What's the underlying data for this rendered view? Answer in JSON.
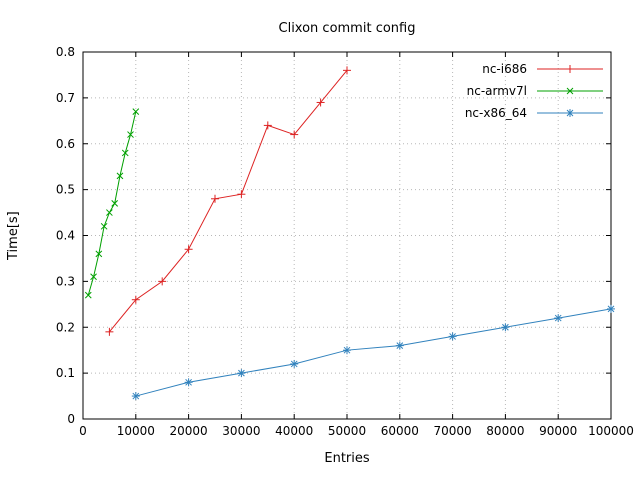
{
  "chart_data": {
    "type": "line",
    "title": "Clixon commit config",
    "xlabel": "Entries",
    "ylabel": "Time[s]",
    "xlim": [
      0,
      100000
    ],
    "ylim": [
      0,
      0.8
    ],
    "grid": true,
    "legend_position": "top-right-inside",
    "xticks": {
      "values": [
        0,
        10000,
        20000,
        30000,
        40000,
        50000,
        60000,
        70000,
        80000,
        90000,
        100000
      ],
      "labels": [
        "0",
        "10000",
        "20000",
        "30000",
        "40000",
        "50000",
        "60000",
        "70000",
        "80000",
        "90000",
        "100000"
      ]
    },
    "yticks": {
      "values": [
        0,
        0.1,
        0.2,
        0.3,
        0.4,
        0.5,
        0.6,
        0.7,
        0.8
      ],
      "labels": [
        "0",
        "0.1",
        "0.2",
        "0.3",
        "0.4",
        "0.5",
        "0.6",
        "0.7",
        "0.8"
      ]
    },
    "series": [
      {
        "name": "nc-i686",
        "color": "#dd2222",
        "marker": "plus",
        "x": [
          5000,
          10000,
          15000,
          20000,
          25000,
          30000,
          35000,
          40000,
          45000,
          50000
        ],
        "y": [
          0.19,
          0.26,
          0.3,
          0.37,
          0.48,
          0.49,
          0.64,
          0.62,
          0.69,
          0.76
        ]
      },
      {
        "name": "nc-armv7l",
        "color": "#00a000",
        "marker": "cross",
        "x": [
          1000,
          2000,
          3000,
          4000,
          5000,
          6000,
          7000,
          8000,
          9000,
          10000
        ],
        "y": [
          0.27,
          0.31,
          0.36,
          0.42,
          0.45,
          0.47,
          0.53,
          0.58,
          0.62,
          0.67
        ]
      },
      {
        "name": "nc-x86_64",
        "color": "#3182bd",
        "marker": "asterisk",
        "x": [
          10000,
          20000,
          30000,
          40000,
          50000,
          60000,
          70000,
          80000,
          90000,
          100000
        ],
        "y": [
          0.05,
          0.08,
          0.1,
          0.12,
          0.15,
          0.16,
          0.18,
          0.2,
          0.22,
          0.24
        ]
      }
    ]
  }
}
